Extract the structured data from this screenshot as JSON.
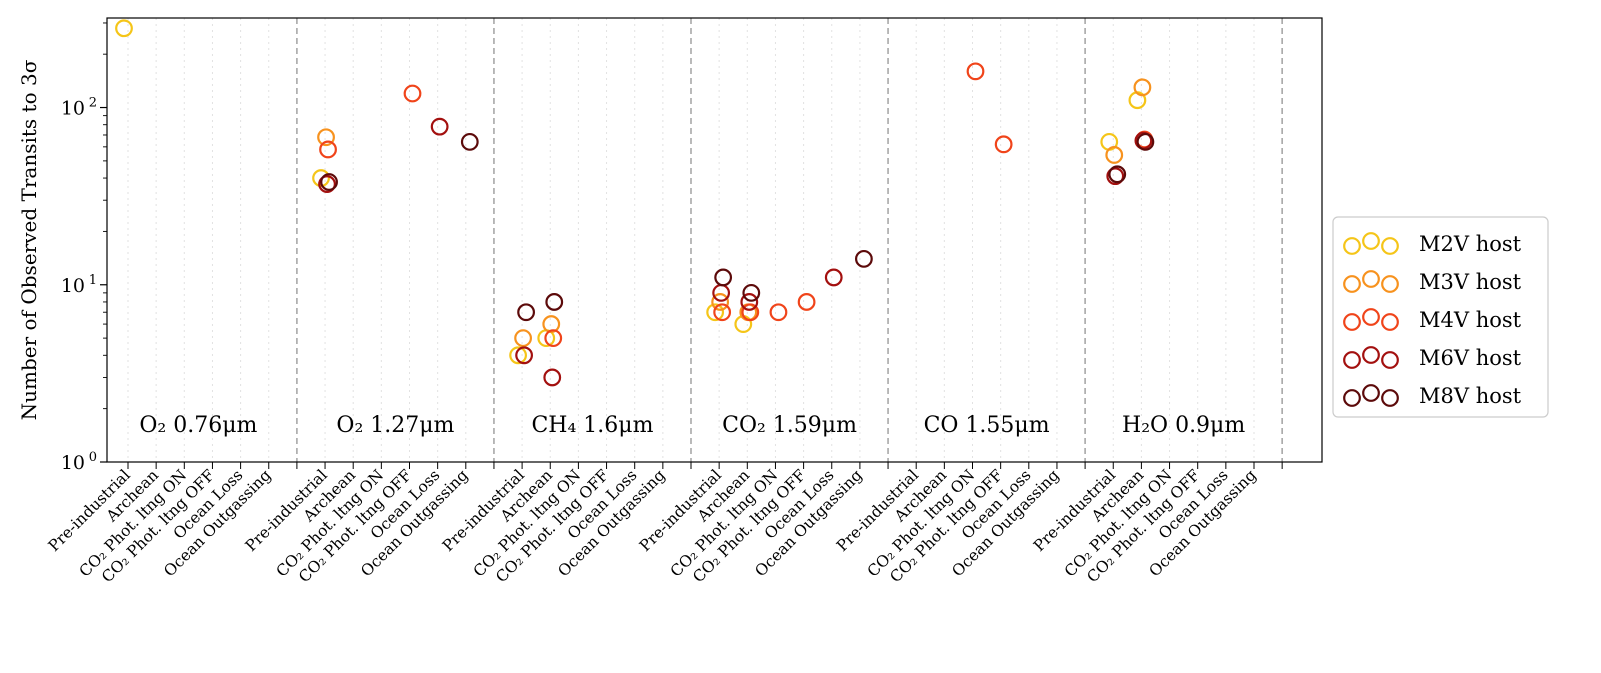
{
  "chart_data": {
    "type": "scatter",
    "y_scale": "log",
    "ylim": [
      1,
      320
    ],
    "ylabel": "Number of Observed Transits to 3σ",
    "y_ticks": [
      {
        "value": 1,
        "base": "10",
        "exp": "0"
      },
      {
        "value": 10,
        "base": "10",
        "exp": "1"
      },
      {
        "value": 100,
        "base": "10",
        "exp": "2"
      }
    ],
    "scenarios": [
      "Pre-industrial",
      "Archean",
      "CO₂ Phot. ltng ON",
      "CO₂ Phot. ltng OFF",
      "Ocean Loss",
      "Ocean Outgassing"
    ],
    "groups": [
      {
        "label": "O₂ 0.76μm"
      },
      {
        "label": "O₂ 1.27μm"
      },
      {
        "label": "CH₄ 1.6μm"
      },
      {
        "label": "CO₂ 1.59μm"
      },
      {
        "label": "CO 1.55μm"
      },
      {
        "label": "H₂O 0.9μm"
      }
    ],
    "series": [
      {
        "name": "M2V host",
        "color": "#f5c518",
        "points": [
          {
            "g": 0,
            "s": 0,
            "y": 280
          },
          {
            "g": 1,
            "s": 0,
            "y": 40
          },
          {
            "g": 2,
            "s": 0,
            "y": 4
          },
          {
            "g": 2,
            "s": 1,
            "y": 5
          },
          {
            "g": 3,
            "s": 0,
            "y": 7
          },
          {
            "g": 3,
            "s": 1,
            "y": 6
          },
          {
            "g": 5,
            "s": 0,
            "y": 64
          },
          {
            "g": 5,
            "s": 1,
            "y": 110
          }
        ]
      },
      {
        "name": "M3V host",
        "color": "#f7921e",
        "points": [
          {
            "g": 1,
            "s": 0,
            "y": 68
          },
          {
            "g": 2,
            "s": 0,
            "y": 5
          },
          {
            "g": 2,
            "s": 1,
            "y": 6
          },
          {
            "g": 3,
            "s": 0,
            "y": 8
          },
          {
            "g": 3,
            "s": 1,
            "y": 7
          },
          {
            "g": 5,
            "s": 0,
            "y": 54
          },
          {
            "g": 5,
            "s": 1,
            "y": 130
          }
        ]
      },
      {
        "name": "M4V host",
        "color": "#f0441a",
        "points": [
          {
            "g": 1,
            "s": 0,
            "y": 58
          },
          {
            "g": 1,
            "s": 3,
            "y": 120
          },
          {
            "g": 2,
            "s": 1,
            "y": 5
          },
          {
            "g": 3,
            "s": 0,
            "y": 7
          },
          {
            "g": 3,
            "s": 1,
            "y": 7
          },
          {
            "g": 3,
            "s": 2,
            "y": 7
          },
          {
            "g": 3,
            "s": 3,
            "y": 8
          },
          {
            "g": 4,
            "s": 2,
            "y": 160
          },
          {
            "g": 4,
            "s": 3,
            "y": 62
          },
          {
            "g": 5,
            "s": 1,
            "y": 66
          }
        ]
      },
      {
        "name": "M6V host",
        "color": "#a3100f",
        "points": [
          {
            "g": 1,
            "s": 0,
            "y": 37
          },
          {
            "g": 1,
            "s": 4,
            "y": 78
          },
          {
            "g": 2,
            "s": 0,
            "y": 4
          },
          {
            "g": 2,
            "s": 1,
            "y": 3
          },
          {
            "g": 3,
            "s": 0,
            "y": 9
          },
          {
            "g": 3,
            "s": 1,
            "y": 8
          },
          {
            "g": 3,
            "s": 4,
            "y": 11
          },
          {
            "g": 5,
            "s": 0,
            "y": 41
          },
          {
            "g": 5,
            "s": 1,
            "y": 65
          }
        ]
      },
      {
        "name": "M8V host",
        "color": "#5c0a0a",
        "points": [
          {
            "g": 1,
            "s": 0,
            "y": 38
          },
          {
            "g": 1,
            "s": 5,
            "y": 64
          },
          {
            "g": 2,
            "s": 0,
            "y": 7
          },
          {
            "g": 2,
            "s": 1,
            "y": 8
          },
          {
            "g": 3,
            "s": 0,
            "y": 11
          },
          {
            "g": 3,
            "s": 1,
            "y": 9
          },
          {
            "g": 3,
            "s": 5,
            "y": 14
          },
          {
            "g": 5,
            "s": 0,
            "y": 42
          },
          {
            "g": 5,
            "s": 1,
            "y": 64
          }
        ]
      }
    ]
  }
}
